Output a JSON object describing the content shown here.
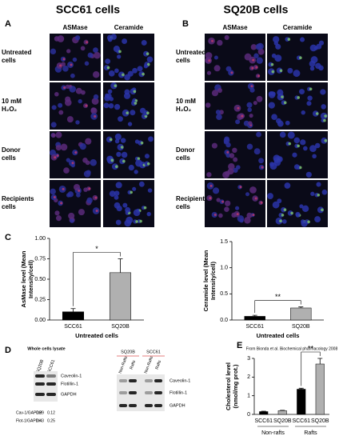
{
  "figure": {
    "titles": [
      "SCC61 cells",
      "SQ20B cells"
    ],
    "panel_labels": [
      "A",
      "B",
      "C",
      "D",
      "E"
    ],
    "column_headers": [
      "ASMase",
      "Ceramide"
    ],
    "row_labels": [
      [
        "Untreated",
        "cells"
      ],
      [
        "10 mM",
        "H₂O₂"
      ],
      [
        "Donor",
        "cells"
      ],
      [
        "Recipients",
        "cells"
      ]
    ]
  },
  "blots": {
    "left": {
      "title": "Whole cells lysate",
      "lanes": [
        "SQ20B",
        "SCC61"
      ],
      "proteins": [
        "Caveolin-1",
        "Flotillin-1",
        "GAPDH"
      ],
      "ratios": [
        {
          "label": "Cav-1/GAPDH",
          "values": [
            0.29,
            0.12
          ]
        },
        {
          "label": "Flot-1/GAPDH",
          "values": [
            0.43,
            0.25
          ]
        }
      ]
    },
    "right": {
      "groups": [
        "SQ20B",
        "SCC61"
      ],
      "lanes": [
        "Non-Rafts",
        "Rafts",
        "Non-Rafts",
        "Rafts"
      ],
      "proteins": [
        "Caveolin-1",
        "Flotillin-1",
        "GAPDH"
      ]
    }
  },
  "chart_data": [
    {
      "type": "bar",
      "ylabel_lines": [
        "AsMase level (Mean",
        "Intensity/cell)"
      ],
      "xlabel": "Untreated cells",
      "categories": [
        "SCC61",
        "SQ20B"
      ],
      "values": [
        0.1,
        0.58
      ],
      "errors": [
        0.04,
        0.17
      ],
      "colors": [
        "#000000",
        "#b0b0b0"
      ],
      "ylim": [
        0,
        1
      ],
      "yticks": [
        {
          "value": 0,
          "label": "0.00"
        },
        {
          "value": 0.25,
          "label": "0.25"
        },
        {
          "value": 0.5,
          "label": "0.50"
        },
        {
          "value": 0.75,
          "label": "0.75"
        },
        {
          "value": 1,
          "label": "1.00"
        }
      ],
      "annotation": "*"
    },
    {
      "type": "bar",
      "ylabel_lines": [
        "Ceramide level (Mean",
        "Intensity/cell)"
      ],
      "xlabel": "Untreated cells",
      "categories": [
        "SCC61",
        "SQ20B"
      ],
      "values": [
        0.07,
        0.23
      ],
      "errors": [
        0.02,
        0.02
      ],
      "colors": [
        "#000000",
        "#b0b0b0"
      ],
      "ylim": [
        0,
        1.5
      ],
      "yticks": [
        {
          "value": 0,
          "label": "0.0"
        },
        {
          "value": 0.5,
          "label": "0.5"
        },
        {
          "value": 1,
          "label": "1.0"
        },
        {
          "value": 1.5,
          "label": "1.5"
        }
      ],
      "annotation": "**"
    },
    {
      "type": "bar",
      "source": "From Bionda et al. Biochemical pharmacology 2008",
      "ylabel_lines": [
        "Cholesterol level",
        "(nmol/mg prot.)"
      ],
      "categories": [
        "SCC61",
        "SQ20B",
        "SCC61",
        "SQ20B"
      ],
      "groups": [
        "Non-rafts",
        "Rafts"
      ],
      "values": [
        0.15,
        0.2,
        1.35,
        2.7
      ],
      "errors": [
        0.02,
        0.02,
        0.05,
        0.3
      ],
      "colors": [
        "#000000",
        "#b0b0b0",
        "#000000",
        "#b0b0b0"
      ],
      "ylim": [
        0,
        3
      ],
      "yticks": [
        0,
        1,
        2,
        3
      ],
      "annotation": "**"
    }
  ]
}
